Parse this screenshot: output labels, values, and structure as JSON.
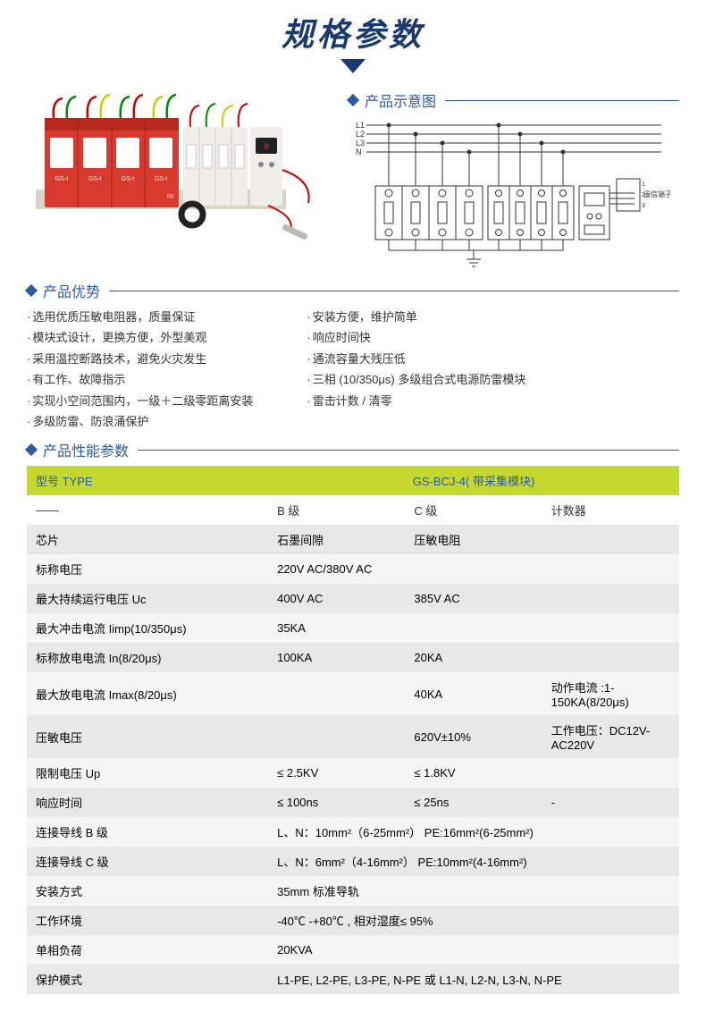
{
  "title": "规格参数",
  "sections": {
    "schematic": "产品示意图",
    "advantages": "产品优势",
    "specs": "产品性能参数"
  },
  "schematic_labels": {
    "L1": "L1",
    "L2": "L2",
    "L3": "L3",
    "N": "N",
    "PE": "PE",
    "terminal": "遥信端子",
    "t1": "1",
    "t2": "2",
    "t3": "3"
  },
  "advantages": {
    "left": [
      "选用优质压敏电阻器，质量保证",
      "模块式设计，更换方便，外型美观",
      "采用温控断路技术，避免火灾发生",
      "有工作、故障指示",
      "实现小空间范围内，一级＋二级零距离安装",
      "多级防雷、防浪涌保护"
    ],
    "right": [
      "安装方便，维护简单",
      "响应时间快",
      "通流容量大残压低",
      "三相 (10/350μs) 多级组合式电源防雷模块",
      "雷击计数 / 清零"
    ]
  },
  "table": {
    "header": {
      "type": "型号 TYPE",
      "model": "GS-BCJ-4( 带采集模块)"
    },
    "sub_header": {
      "c1": "——",
      "c2": "B 级",
      "c3": "C 级",
      "c4": "计数器"
    },
    "rows": [
      {
        "name": "芯片",
        "c2": "石墨间隙",
        "c3": "压敏电阻",
        "c4": ""
      },
      {
        "name": "标称电压",
        "c2": "220V AC/380V AC",
        "span": 3
      },
      {
        "name": "最大持续运行电压 Uc",
        "c2": "400V AC",
        "c3": "385V AC",
        "c4": ""
      },
      {
        "name": "最大冲击电流 Iimp(10/350μs)",
        "c2": "35KA",
        "c3": "",
        "c4": ""
      },
      {
        "name": "标称放电电流 In(8/20μs)",
        "c2": "100KA",
        "c3": "20KA",
        "c4": ""
      },
      {
        "name": "最大放电电流 Imax(8/20μs)",
        "c2": "",
        "c3": "40KA",
        "c4": "动作电流 :1-150KA(8/20μs)"
      },
      {
        "name": "压敏电压",
        "c2": "",
        "c3": "620V±10%",
        "c4": "工作电压：DC12V-AC220V"
      },
      {
        "name": "限制电压 Up",
        "c2": "≤ 2.5KV",
        "c3": "≤ 1.8KV",
        "c4": ""
      },
      {
        "name": "响应时间",
        "c2": "≤ 100ns",
        "c3": "≤ 25ns",
        "c4": "-"
      },
      {
        "name": "连接导线 B 级",
        "c2": "L、N：10mm²（6-25mm²）  PE:16mm²(6-25mm²)",
        "span": 3
      },
      {
        "name": "连接导线 C 级",
        "c2": "L、N：6mm²（4-16mm²）  PE:10mm²(4-16mm²)",
        "span": 3
      },
      {
        "name": "安装方式",
        "c2": "35mm 标准导轨",
        "span": 3
      },
      {
        "name": "工作环境",
        "c2": "-40℃ -+80℃ , 相对湿度≤ 95%",
        "span": 3
      },
      {
        "name": "单相负荷",
        "c2": "20KVA",
        "span": 3
      },
      {
        "name": "保护模式",
        "c2": "L1-PE, L2-PE, L3-PE, N-PE 或 L1-N, L2-N, L3-N, N-PE",
        "span": 3
      }
    ]
  },
  "colors": {
    "primary": "#2e5aa0",
    "title": "#1a3a6e",
    "accent": "#c4d82e",
    "row_odd": "#f5f5f5",
    "row_even": "#e8e8e8",
    "prod_red": "#d83a2e",
    "prod_white": "#f0eee8"
  }
}
